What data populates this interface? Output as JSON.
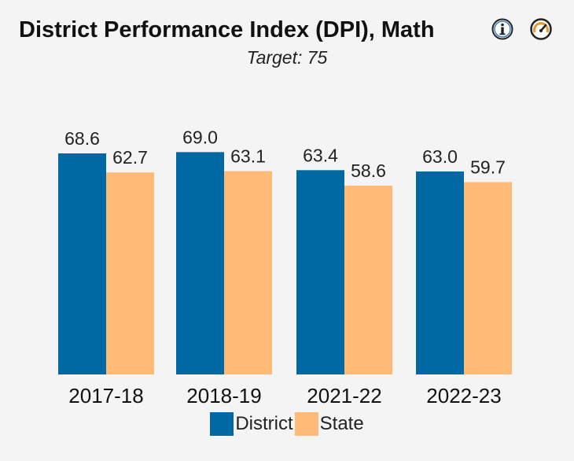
{
  "header": {
    "title": "District Performance Index (DPI), Math",
    "subtitle": "Target: 75",
    "info_icon": "info-icon",
    "gauge_icon": "gauge-icon"
  },
  "colors": {
    "district": "#0068a3",
    "state": "#ffba78",
    "background": "#f4f4f4"
  },
  "chart_data": {
    "type": "bar",
    "title": "District Performance Index (DPI), Math",
    "subtitle": "Target: 75",
    "categories": [
      "2017-18",
      "2018-19",
      "2021-22",
      "2022-23"
    ],
    "series": [
      {
        "name": "District",
        "values": [
          68.6,
          69.0,
          63.4,
          63.0
        ],
        "labels": [
          "68.6",
          "69.0",
          "63.4",
          "63.0"
        ]
      },
      {
        "name": "State",
        "values": [
          62.7,
          63.1,
          58.6,
          59.7
        ],
        "labels": [
          "62.7",
          "63.1",
          "58.6",
          "59.7"
        ]
      }
    ],
    "ylim": [
      0,
      80
    ],
    "grid": false,
    "legend": "bottom"
  }
}
